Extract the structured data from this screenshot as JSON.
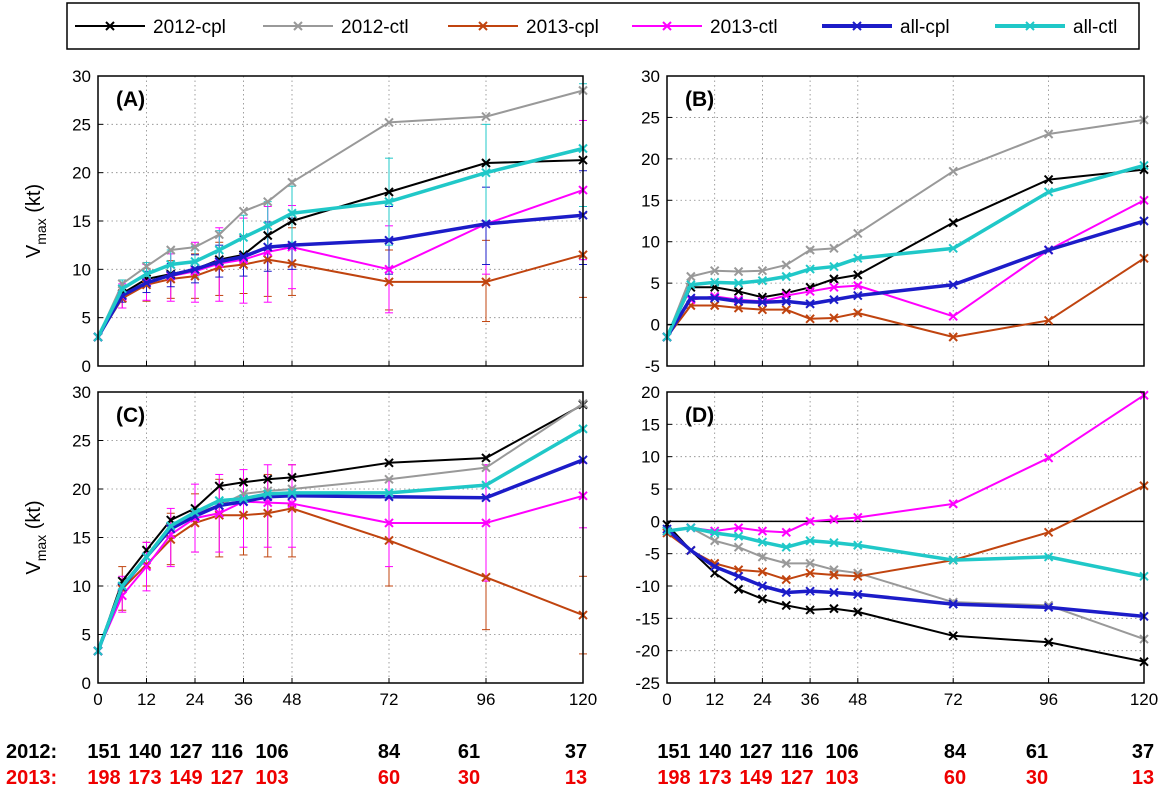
{
  "colors": {
    "2012-cpl": "#000000",
    "2012-ctl": "#999999",
    "2013-cpl": "#c0440f",
    "2013-ctl": "#ff00ff",
    "all-cpl": "#1c1cc8",
    "all-ctl": "#20c8c8",
    "count_2013": "#ee0000"
  },
  "legend": [
    "2012-cpl",
    "2012-ctl",
    "2013-cpl",
    "2013-ctl",
    "all-cpl",
    "all-ctl"
  ],
  "ylabel": {
    "main": "V",
    "sub": "max",
    "unit": " (kt)"
  },
  "counts": {
    "label_2012": "2012:",
    "label_2013": "2013:",
    "values_2012": [
      "151",
      "140",
      "127",
      "116",
      "106",
      "84",
      "61",
      "37"
    ],
    "values_2013": [
      "198",
      "173",
      "149",
      "127",
      "103",
      "60",
      "30",
      "13"
    ]
  },
  "chart_data": [
    {
      "panel": "(A)",
      "type": "line",
      "ylabel": "Vmax (kt)",
      "ylim": [
        0,
        30
      ],
      "yticks": [
        0,
        5,
        10,
        15,
        20,
        25,
        30
      ],
      "xlim": [
        0,
        120
      ],
      "xticks": [
        0,
        12,
        24,
        36,
        48,
        72,
        96,
        120
      ],
      "x": [
        0,
        6,
        12,
        18,
        24,
        30,
        36,
        42,
        48,
        72,
        96,
        120
      ],
      "grid": true,
      "series": [
        {
          "name": "2012-cpl",
          "values": [
            3,
            7.5,
            9,
            9.5,
            10,
            11,
            11.5,
            13.5,
            15,
            18,
            21,
            21.3
          ]
        },
        {
          "name": "2012-ctl",
          "values": [
            3,
            8.5,
            10.3,
            12,
            12.3,
            13.6,
            16,
            17,
            19,
            25.2,
            25.8,
            28.5
          ]
        },
        {
          "name": "2013-cpl",
          "values": [
            3,
            7,
            8.4,
            9,
            9.3,
            10.2,
            10.5,
            11,
            10.6,
            8.7,
            8.7,
            11.5
          ]
        },
        {
          "name": "2013-ctl",
          "values": [
            3,
            7.2,
            8.7,
            9.3,
            9.8,
            10.6,
            11,
            11.8,
            12.3,
            10,
            14.7,
            18.2
          ]
        },
        {
          "name": "all-cpl",
          "values": [
            3,
            7.3,
            8.6,
            9.4,
            10,
            10.8,
            11.3,
            12.3,
            12.5,
            13,
            14.7,
            15.6
          ]
        },
        {
          "name": "all-ctl",
          "values": [
            3,
            8,
            9.5,
            10.5,
            10.8,
            12,
            13.3,
            14.5,
            15.8,
            17,
            20,
            22.5
          ]
        }
      ],
      "error_bars": [
        {
          "series": "2013-cpl",
          "x": [
            6,
            12,
            18,
            24,
            30,
            36,
            42,
            48,
            72,
            96,
            120
          ],
          "low": [
            6,
            6.7,
            7,
            7,
            7.3,
            7.5,
            7.2,
            7.3,
            5.8,
            4.6,
            7.1
          ],
          "high": [
            8.3,
            10.1,
            10.9,
            11.6,
            12.8,
            13.5,
            14.5,
            14.3,
            12,
            13,
            15.8
          ]
        },
        {
          "name": "2013-ctl",
          "series": "2013-ctl",
          "x": [
            6,
            12,
            18,
            24,
            30,
            36,
            42,
            48,
            72,
            96,
            120
          ],
          "low": [
            6,
            6.8,
            6.7,
            6.6,
            6.7,
            6.5,
            6.6,
            8,
            5.5,
            9.5,
            11
          ],
          "high": [
            8.5,
            10.5,
            11.6,
            12.8,
            14.3,
            15.3,
            16.5,
            16.6,
            14.5,
            20,
            25.4
          ]
        },
        {
          "series": "all-cpl",
          "x": [
            6,
            12,
            18,
            24,
            30,
            36,
            42,
            48,
            72,
            96,
            120
          ],
          "low": [
            6.6,
            7.6,
            8.2,
            8.6,
            9.2,
            9.3,
            9.8,
            10,
            9.5,
            10.5,
            10.5
          ],
          "high": [
            8.2,
            9.8,
            10.6,
            11.5,
            12.5,
            13.4,
            14.9,
            15.3,
            16.5,
            18.5,
            20.2
          ]
        },
        {
          "series": "all-ctl",
          "x": [
            6,
            12,
            18,
            24,
            30,
            36,
            42,
            48,
            72,
            96,
            120
          ],
          "low": [
            7.2,
            8.3,
            9,
            9.2,
            10.2,
            11,
            12,
            12.8,
            12.5,
            15,
            16.5
          ],
          "high": [
            8.9,
            10.7,
            12,
            12.4,
            14,
            15.6,
            17,
            18.6,
            21.5,
            25,
            29.2
          ]
        }
      ]
    },
    {
      "panel": "(B)",
      "type": "line",
      "ylim": [
        -5,
        30
      ],
      "yticks": [
        -5,
        0,
        5,
        10,
        15,
        20,
        25,
        30
      ],
      "xlim": [
        0,
        120
      ],
      "xticks": [
        0,
        12,
        24,
        36,
        48,
        72,
        96,
        120
      ],
      "x": [
        0,
        6,
        12,
        18,
        24,
        30,
        36,
        42,
        48,
        72,
        96,
        120
      ],
      "grid": true,
      "zero_line": true,
      "series": [
        {
          "name": "2012-cpl",
          "values": [
            -1.5,
            4.5,
            4.5,
            4,
            3.3,
            3.8,
            4.5,
            5.5,
            6,
            12.3,
            17.5,
            18.7
          ]
        },
        {
          "name": "2012-ctl",
          "values": [
            -1.5,
            5.8,
            6.5,
            6.4,
            6.5,
            7.2,
            9,
            9.2,
            11,
            18.5,
            23,
            24.7
          ]
        },
        {
          "name": "2013-cpl",
          "values": [
            -1.5,
            2.3,
            2.3,
            2,
            1.8,
            1.8,
            0.7,
            0.8,
            1.4,
            -1.5,
            0.5,
            8
          ]
        },
        {
          "name": "2013-ctl",
          "values": [
            -1.5,
            3,
            3.4,
            3,
            2.8,
            3.5,
            4,
            4.5,
            4.7,
            1,
            9,
            15
          ]
        },
        {
          "name": "all-cpl",
          "values": [
            -1.5,
            3.2,
            3.2,
            2.8,
            2.7,
            2.8,
            2.5,
            3,
            3.5,
            4.8,
            9,
            12.5
          ]
        },
        {
          "name": "all-ctl",
          "values": [
            -1.5,
            4.8,
            5.1,
            5,
            5.3,
            5.8,
            6.7,
            7,
            8,
            9.2,
            16,
            19.2
          ]
        }
      ]
    },
    {
      "panel": "(C)",
      "type": "line",
      "ylabel": "Vmax (kt)",
      "ylim": [
        0,
        30
      ],
      "yticks": [
        0,
        5,
        10,
        15,
        20,
        25,
        30
      ],
      "xlim": [
        0,
        120
      ],
      "xticks": [
        0,
        12,
        24,
        36,
        48,
        72,
        96,
        120
      ],
      "x": [
        0,
        6,
        12,
        18,
        24,
        30,
        36,
        42,
        48,
        72,
        96,
        120
      ],
      "grid": true,
      "series": [
        {
          "name": "2012-cpl",
          "values": [
            3.3,
            10.5,
            13.7,
            16.8,
            18,
            20.3,
            20.7,
            21,
            21.2,
            22.7,
            23.2,
            28.7
          ]
        },
        {
          "name": "2012-ctl",
          "values": [
            3.3,
            10,
            13,
            16,
            17.5,
            18.3,
            19.5,
            19.8,
            20,
            21,
            22.2,
            28.8
          ]
        },
        {
          "name": "2013-cpl",
          "values": [
            3.3,
            9.7,
            12.2,
            14.8,
            16.5,
            17.3,
            17.3,
            17.5,
            18,
            14.7,
            10.9,
            7
          ]
        },
        {
          "name": "2013-ctl",
          "values": [
            3.3,
            9,
            12,
            15.3,
            17,
            17.5,
            18.7,
            18.6,
            18.5,
            16.5,
            16.5,
            19.3
          ]
        },
        {
          "name": "all-cpl",
          "values": [
            3.3,
            9.9,
            13,
            15.9,
            17.2,
            18.3,
            18.7,
            19.2,
            19.3,
            19.2,
            19.1,
            23
          ]
        },
        {
          "name": "all-ctl",
          "values": [
            3.3,
            10,
            13,
            16.2,
            17.6,
            18.8,
            19,
            19.5,
            19.6,
            19.6,
            20.4,
            26.2
          ]
        }
      ],
      "error_bars": [
        {
          "series": "2013-cpl",
          "x": [
            6,
            12,
            18,
            24,
            30,
            36,
            42,
            48,
            72,
            96,
            120
          ],
          "low": [
            7.5,
            10,
            12.2,
            13.5,
            13,
            13.2,
            13,
            13,
            10,
            5.5,
            3
          ],
          "high": [
            12,
            14.5,
            17.5,
            19.5,
            21,
            21,
            21.5,
            22.5,
            19.5,
            16.5,
            11
          ]
        },
        {
          "series": "2013-ctl",
          "x": [
            6,
            12,
            18,
            24,
            30,
            36,
            42,
            48,
            72,
            96,
            120
          ],
          "low": [
            7.3,
            9.5,
            12,
            13.5,
            13.5,
            14,
            14,
            14,
            12,
            10.5,
            16
          ],
          "high": [
            11,
            14.5,
            18,
            20.5,
            21.5,
            22,
            22.5,
            22.5,
            21,
            22.5,
            22.7
          ]
        }
      ]
    },
    {
      "panel": "(D)",
      "type": "line",
      "ylim": [
        -25,
        20
      ],
      "yticks": [
        -25,
        -20,
        -15,
        -10,
        -5,
        0,
        5,
        10,
        15,
        20
      ],
      "xlim": [
        0,
        120
      ],
      "xticks": [
        0,
        12,
        24,
        36,
        48,
        72,
        96,
        120
      ],
      "x": [
        0,
        6,
        12,
        18,
        24,
        30,
        36,
        42,
        48,
        72,
        96,
        120
      ],
      "grid": true,
      "zero_line": true,
      "series": [
        {
          "name": "2012-cpl",
          "values": [
            -0.5,
            -4.5,
            -8,
            -10.5,
            -12,
            -13,
            -13.7,
            -13.5,
            -14,
            -17.7,
            -18.7,
            -21.7
          ]
        },
        {
          "name": "2012-ctl",
          "values": [
            -1.5,
            -1,
            -3,
            -4,
            -5.5,
            -6.5,
            -6.5,
            -7.5,
            -8,
            -12.5,
            -13,
            -18.2
          ]
        },
        {
          "name": "2013-cpl",
          "values": [
            -1.8,
            -4.5,
            -6.5,
            -7.5,
            -7.8,
            -9,
            -8,
            -8.3,
            -8.5,
            -6,
            -1.7,
            5.5
          ]
        },
        {
          "name": "2013-ctl",
          "values": [
            -1.5,
            -1,
            -1.5,
            -1,
            -1.5,
            -1.7,
            0,
            0.3,
            0.6,
            2.7,
            9.8,
            19.5
          ]
        },
        {
          "name": "all-cpl",
          "values": [
            -1.2,
            -4.5,
            -7,
            -8.5,
            -10,
            -11,
            -10.8,
            -11,
            -11.3,
            -12.8,
            -13.3,
            -14.7
          ]
        },
        {
          "name": "all-ctl",
          "values": [
            -1.5,
            -1,
            -1.8,
            -2.3,
            -3.2,
            -4,
            -3,
            -3.3,
            -3.7,
            -6,
            -5.5,
            -8.5
          ]
        }
      ]
    }
  ]
}
